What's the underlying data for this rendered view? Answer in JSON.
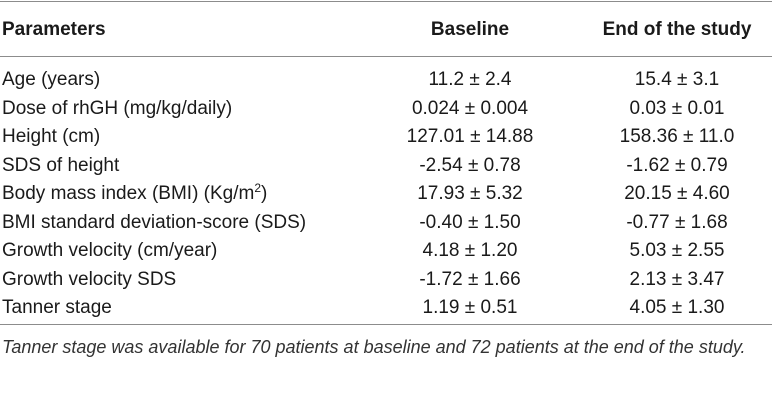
{
  "table": {
    "headers": [
      "Parameters",
      "Baseline",
      "End of the study"
    ],
    "rows": [
      [
        "Age (years)",
        "11.2 ± 2.4",
        "15.4 ± 3.1"
      ],
      [
        "Dose of rhGH (mg/kg/daily)",
        "0.024 ± 0.004",
        "0.03 ± 0.01"
      ],
      [
        "Height (cm)",
        "127.01 ± 14.88",
        "158.36 ± 11.0"
      ],
      [
        "SDS of height",
        "-2.54 ± 0.78",
        "-1.62 ± 0.79"
      ],
      [
        {
          "text": "Body mass index (BMI) (Kg/m",
          "superscript": "2",
          "suffix": ")"
        },
        "17.93 ± 5.32",
        "20.15 ± 4.60"
      ],
      [
        "BMI standard deviation-score (SDS)",
        "-0.40 ± 1.50",
        "-0.77 ± 1.68"
      ],
      [
        "Growth velocity (cm/year)",
        "4.18 ± 1.20",
        "5.03 ± 2.55"
      ],
      [
        "Growth velocity SDS",
        "-1.72 ± 1.66",
        "2.13 ± 3.47"
      ],
      [
        "Tanner stage",
        "1.19 ± 0.51",
        "4.05 ± 1.30"
      ]
    ]
  },
  "footnote": "Tanner stage was available for 70 patients at baseline and 72 patients at the end of the study."
}
